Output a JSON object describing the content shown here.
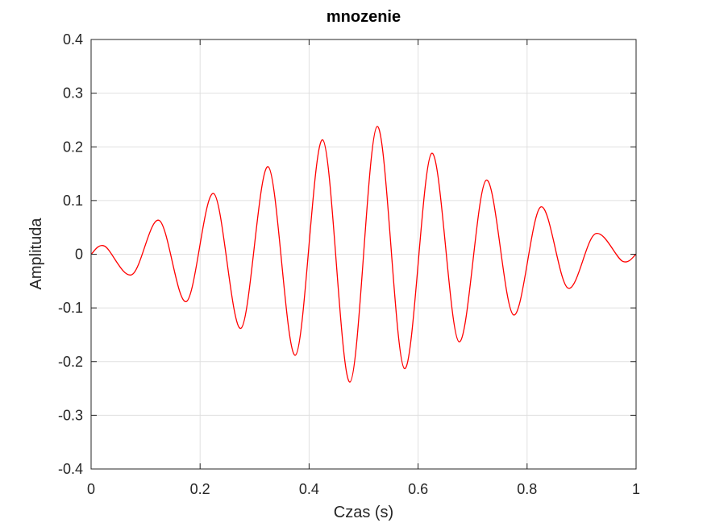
{
  "chart_data": {
    "type": "line",
    "title": "mnozenie",
    "xlabel": "Czas (s)",
    "ylabel": "Amplituda",
    "xlim": [
      0,
      1
    ],
    "ylim": [
      -0.4,
      0.4
    ],
    "grid": true,
    "xticks": [
      0,
      0.2,
      0.4,
      0.6,
      0.8,
      1
    ],
    "xtick_labels": [
      "0",
      "0.2",
      "0.4",
      "0.6",
      "0.8",
      "1"
    ],
    "yticks": [
      0.4,
      0.3,
      0.2,
      0.1,
      0,
      -0.1,
      -0.2,
      -0.3,
      -0.4
    ],
    "ytick_labels": [
      "0.4",
      "0.3",
      "0.2",
      "0.1",
      "0",
      "-0.1",
      "-0.2",
      "-0.3",
      "-0.4"
    ],
    "series": [
      {
        "color": "#ff0000",
        "x": [
          0,
          0.025,
          0.075,
          0.125,
          0.175,
          0.225,
          0.275,
          0.325,
          0.375,
          0.425,
          0.475,
          0.525,
          0.575,
          0.625,
          0.675,
          0.725,
          0.775,
          0.825,
          0.875,
          0.925,
          0.975,
          1
        ],
        "y": [
          0,
          0.015,
          -0.038,
          0.063,
          -0.088,
          0.113,
          -0.138,
          0.163,
          -0.188,
          0.213,
          -0.238,
          0.238,
          -0.213,
          0.188,
          -0.163,
          0.138,
          -0.113,
          0.088,
          -0.063,
          0.038,
          -0.013,
          0
        ]
      }
    ]
  },
  "colors": {
    "line": "#ff0000",
    "grid": "#e0e0e0",
    "axis": "#262626"
  }
}
